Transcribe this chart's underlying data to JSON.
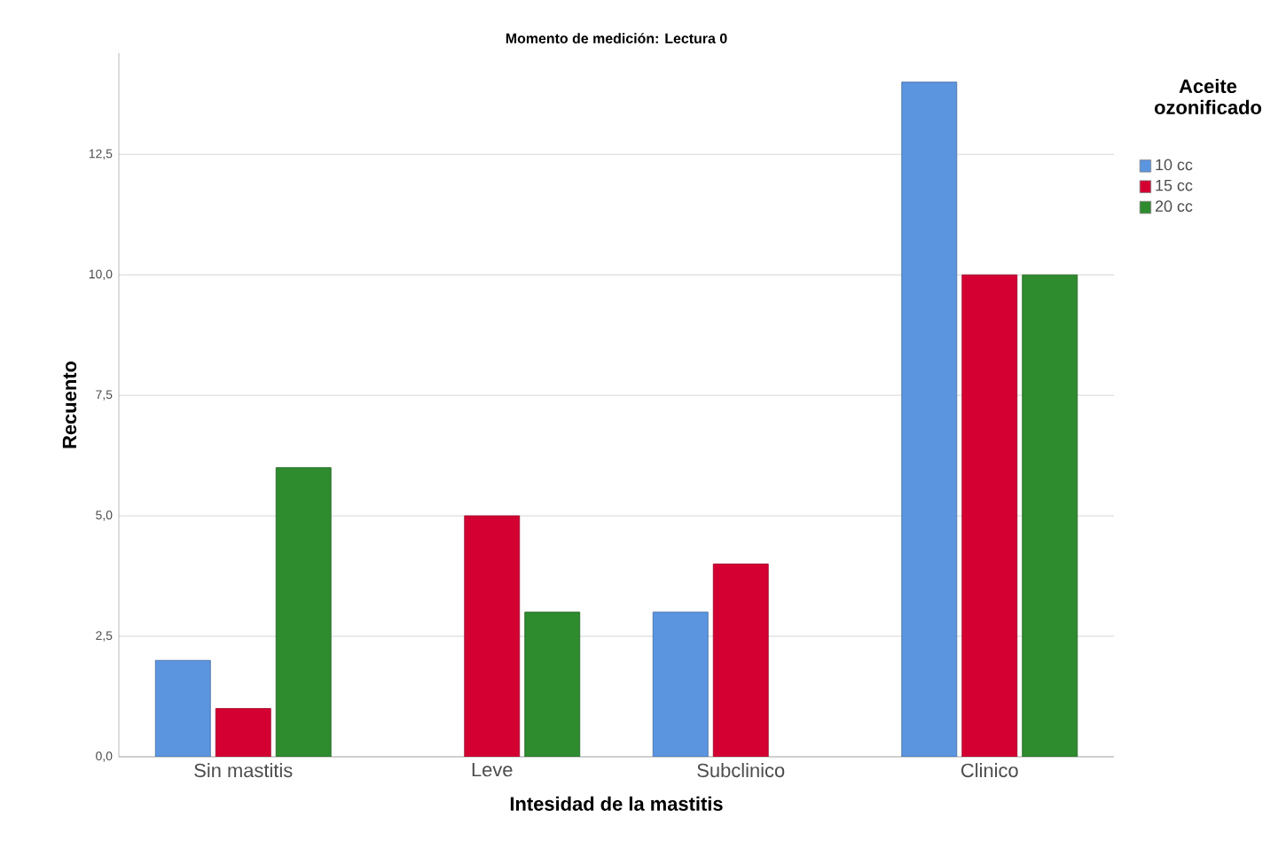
{
  "chart_data": {
    "type": "bar",
    "title": "Momento de medición: Lectura 0",
    "xlabel": "Intesidad de la mastitis",
    "ylabel": "Recuento",
    "legend_title": "Aceite ozonificado",
    "categories": [
      "Sin mastitis",
      "Leve",
      "Subclinico",
      "Clinico"
    ],
    "series": [
      {
        "name": "10 cc",
        "color": "#5b95e0",
        "values": [
          2,
          null,
          3,
          14
        ]
      },
      {
        "name": "15 cc",
        "color": "#d50032",
        "values": [
          1,
          5,
          4,
          10
        ]
      },
      {
        "name": "20 cc",
        "color": "#2e8b2e",
        "values": [
          6,
          3,
          null,
          10
        ]
      }
    ],
    "ylim": [
      0,
      14.6
    ],
    "yticks": [
      {
        "value": 0,
        "label": "0,0"
      },
      {
        "value": 2.5,
        "label": "2,5"
      },
      {
        "value": 5,
        "label": "5,0"
      },
      {
        "value": 7.5,
        "label": "7,5"
      },
      {
        "value": 10,
        "label": "10,0"
      },
      {
        "value": 12.5,
        "label": "12,5"
      }
    ],
    "grid": "y",
    "legend": "top right"
  }
}
